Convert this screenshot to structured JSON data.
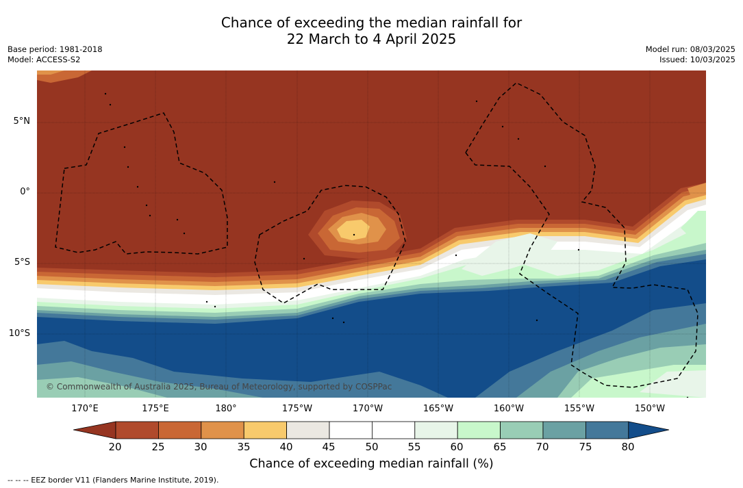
{
  "title_line1": "Chance of exceeding the median rainfall for",
  "title_line2": "22 March to 4 April 2025",
  "base_period": "Base period: 1981-2018",
  "model": "Model: ACCESS-S2",
  "model_run": "Model run: 08/03/2025",
  "issued": "Issued: 10/03/2025",
  "lat_labels": [
    "5°N",
    "0°",
    "5°S",
    "10°S"
  ],
  "lon_labels": [
    "170°E",
    "175°E",
    "180°",
    "175°W",
    "170°W",
    "165°W",
    "160°W",
    "155°W",
    "150°W"
  ],
  "copyright": "© Commonwealth of Australia 2025, Bureau of Meteorology, supported by COSPPac",
  "colorbar": {
    "ticks": [
      "20",
      "25",
      "30",
      "35",
      "40",
      "45",
      "50",
      "55",
      "60",
      "65",
      "70",
      "75",
      "80"
    ],
    "label": "Chance of exceeding median rainfall (%)",
    "colors": {
      "below20": "#963521",
      "c20_25": "#b04a2c",
      "c25_30": "#c96735",
      "c30_35": "#e0924a",
      "c35_40": "#f8ca6c",
      "c40_45": "#ebe8e2",
      "c45_50": "#ffffff",
      "c50_55": "#ffffff",
      "c55_60": "#e8f5e9",
      "c60_65": "#c8f7cb",
      "c65_70": "#99cdb5",
      "c70_75": "#6ba1a3",
      "c75_80": "#44789a",
      "above80": "#134d8a"
    }
  },
  "footnote": "--  --  -- EEZ border V11 (Flanders Marine Institute, 2019)."
}
